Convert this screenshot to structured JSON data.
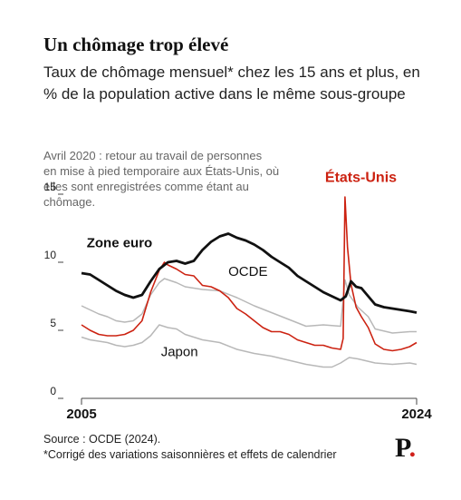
{
  "header": {
    "title": "Un chômage trop élevé",
    "subtitle": "Taux de chômage mensuel* chez les 15 ans et plus, en % de la population active dans le même sous-groupe"
  },
  "annotation": [
    "Avril 2020 :  retour au travail de personnes",
    "en mise à pied temporaire aux États-Unis, où",
    "elles sont enregistrées comme étant au",
    "chômage."
  ],
  "footer": {
    "source": "Source : OCDE (2024).",
    "note": "*Corrigé des variations saisonnières et effets de calendrier",
    "logo": "P",
    "logo_dot": "."
  },
  "colors": {
    "euro": "#111111",
    "us": "#cc2211",
    "oecd": "#b8b8b8",
    "japan": "#b8b8b8",
    "axis": "#444444"
  },
  "chart_data": {
    "type": "line",
    "x_range": [
      "2005-01",
      "2024-06"
    ],
    "x_ticks": [
      {
        "label": "2005",
        "year": 2005
      },
      {
        "label": "2024",
        "year": 2024
      }
    ],
    "y_ticks": [
      {
        "label": "0",
        "value": 0
      },
      {
        "label": "5",
        "value": 5
      },
      {
        "label": "10",
        "value": 10
      },
      {
        "label": "15",
        "value": 15
      }
    ],
    "ylim": [
      0,
      15
    ],
    "series": [
      {
        "name": "Zone euro",
        "color_key": "euro",
        "label": "Zone euro",
        "points": [
          [
            2005.0,
            9.2
          ],
          [
            2005.5,
            9.1
          ],
          [
            2006.0,
            8.7
          ],
          [
            2006.5,
            8.3
          ],
          [
            2007.0,
            7.9
          ],
          [
            2007.5,
            7.6
          ],
          [
            2008.0,
            7.4
          ],
          [
            2008.5,
            7.6
          ],
          [
            2009.0,
            8.6
          ],
          [
            2009.5,
            9.5
          ],
          [
            2010.0,
            10.0
          ],
          [
            2010.5,
            10.1
          ],
          [
            2011.0,
            9.9
          ],
          [
            2011.5,
            10.1
          ],
          [
            2012.0,
            10.9
          ],
          [
            2012.5,
            11.5
          ],
          [
            2013.0,
            11.9
          ],
          [
            2013.5,
            12.1
          ],
          [
            2014.0,
            11.8
          ],
          [
            2014.5,
            11.6
          ],
          [
            2015.0,
            11.3
          ],
          [
            2015.5,
            10.9
          ],
          [
            2016.0,
            10.4
          ],
          [
            2016.5,
            10.0
          ],
          [
            2017.0,
            9.6
          ],
          [
            2017.5,
            9.0
          ],
          [
            2018.0,
            8.6
          ],
          [
            2018.5,
            8.2
          ],
          [
            2019.0,
            7.8
          ],
          [
            2019.5,
            7.5
          ],
          [
            2020.0,
            7.2
          ],
          [
            2020.3,
            7.5
          ],
          [
            2020.6,
            8.6
          ],
          [
            2020.9,
            8.2
          ],
          [
            2021.2,
            8.1
          ],
          [
            2021.6,
            7.5
          ],
          [
            2022.0,
            6.9
          ],
          [
            2022.5,
            6.7
          ],
          [
            2023.0,
            6.6
          ],
          [
            2023.5,
            6.5
          ],
          [
            2024.0,
            6.4
          ],
          [
            2024.4,
            6.3
          ]
        ]
      },
      {
        "name": "États-Unis",
        "color_key": "us",
        "label": "États-Unis",
        "points": [
          [
            2005.0,
            5.4
          ],
          [
            2005.5,
            5.0
          ],
          [
            2006.0,
            4.7
          ],
          [
            2006.5,
            4.6
          ],
          [
            2007.0,
            4.6
          ],
          [
            2007.5,
            4.7
          ],
          [
            2008.0,
            5.0
          ],
          [
            2008.5,
            5.7
          ],
          [
            2009.0,
            7.8
          ],
          [
            2009.5,
            9.4
          ],
          [
            2009.8,
            10.0
          ],
          [
            2010.0,
            9.8
          ],
          [
            2010.5,
            9.5
          ],
          [
            2011.0,
            9.1
          ],
          [
            2011.5,
            9.0
          ],
          [
            2012.0,
            8.3
          ],
          [
            2012.5,
            8.2
          ],
          [
            2013.0,
            7.9
          ],
          [
            2013.5,
            7.4
          ],
          [
            2014.0,
            6.6
          ],
          [
            2014.5,
            6.2
          ],
          [
            2015.0,
            5.7
          ],
          [
            2015.5,
            5.2
          ],
          [
            2016.0,
            4.9
          ],
          [
            2016.5,
            4.9
          ],
          [
            2017.0,
            4.7
          ],
          [
            2017.5,
            4.3
          ],
          [
            2018.0,
            4.1
          ],
          [
            2018.5,
            3.9
          ],
          [
            2019.0,
            3.9
          ],
          [
            2019.5,
            3.7
          ],
          [
            2020.0,
            3.6
          ],
          [
            2020.15,
            4.4
          ],
          [
            2020.25,
            14.8
          ],
          [
            2020.4,
            11.1
          ],
          [
            2020.6,
            8.4
          ],
          [
            2020.9,
            6.7
          ],
          [
            2021.2,
            6.0
          ],
          [
            2021.6,
            5.2
          ],
          [
            2022.0,
            4.0
          ],
          [
            2022.5,
            3.6
          ],
          [
            2023.0,
            3.5
          ],
          [
            2023.5,
            3.6
          ],
          [
            2024.0,
            3.8
          ],
          [
            2024.4,
            4.1
          ]
        ]
      },
      {
        "name": "OCDE",
        "color_key": "oecd",
        "label": "OCDE",
        "points": [
          [
            2005.0,
            6.8
          ],
          [
            2005.5,
            6.5
          ],
          [
            2006.0,
            6.2
          ],
          [
            2006.5,
            6.0
          ],
          [
            2007.0,
            5.7
          ],
          [
            2007.5,
            5.6
          ],
          [
            2008.0,
            5.7
          ],
          [
            2008.5,
            6.2
          ],
          [
            2009.0,
            7.6
          ],
          [
            2009.5,
            8.5
          ],
          [
            2009.8,
            8.8
          ],
          [
            2010.5,
            8.5
          ],
          [
            2011.0,
            8.2
          ],
          [
            2012.0,
            8.0
          ],
          [
            2013.0,
            7.9
          ],
          [
            2014.0,
            7.4
          ],
          [
            2015.0,
            6.8
          ],
          [
            2016.0,
            6.3
          ],
          [
            2017.0,
            5.8
          ],
          [
            2018.0,
            5.3
          ],
          [
            2019.0,
            5.4
          ],
          [
            2020.0,
            5.3
          ],
          [
            2020.25,
            8.7
          ],
          [
            2020.5,
            7.6
          ],
          [
            2021.0,
            6.7
          ],
          [
            2021.6,
            6.0
          ],
          [
            2022.0,
            5.1
          ],
          [
            2023.0,
            4.8
          ],
          [
            2024.0,
            4.9
          ],
          [
            2024.4,
            4.9
          ]
        ]
      },
      {
        "name": "Japon",
        "color_key": "japan",
        "label": "Japon",
        "points": [
          [
            2005.0,
            4.5
          ],
          [
            2005.5,
            4.3
          ],
          [
            2006.0,
            4.2
          ],
          [
            2006.5,
            4.1
          ],
          [
            2007.0,
            3.9
          ],
          [
            2007.5,
            3.8
          ],
          [
            2008.0,
            3.9
          ],
          [
            2008.5,
            4.1
          ],
          [
            2009.0,
            4.6
          ],
          [
            2009.5,
            5.4
          ],
          [
            2010.0,
            5.2
          ],
          [
            2010.5,
            5.1
          ],
          [
            2011.0,
            4.7
          ],
          [
            2012.0,
            4.3
          ],
          [
            2013.0,
            4.1
          ],
          [
            2014.0,
            3.6
          ],
          [
            2015.0,
            3.3
          ],
          [
            2016.0,
            3.1
          ],
          [
            2017.0,
            2.8
          ],
          [
            2018.0,
            2.5
          ],
          [
            2019.0,
            2.3
          ],
          [
            2019.5,
            2.3
          ],
          [
            2020.0,
            2.6
          ],
          [
            2020.5,
            3.0
          ],
          [
            2021.0,
            2.9
          ],
          [
            2022.0,
            2.6
          ],
          [
            2023.0,
            2.5
          ],
          [
            2024.0,
            2.6
          ],
          [
            2024.4,
            2.5
          ]
        ]
      }
    ]
  }
}
